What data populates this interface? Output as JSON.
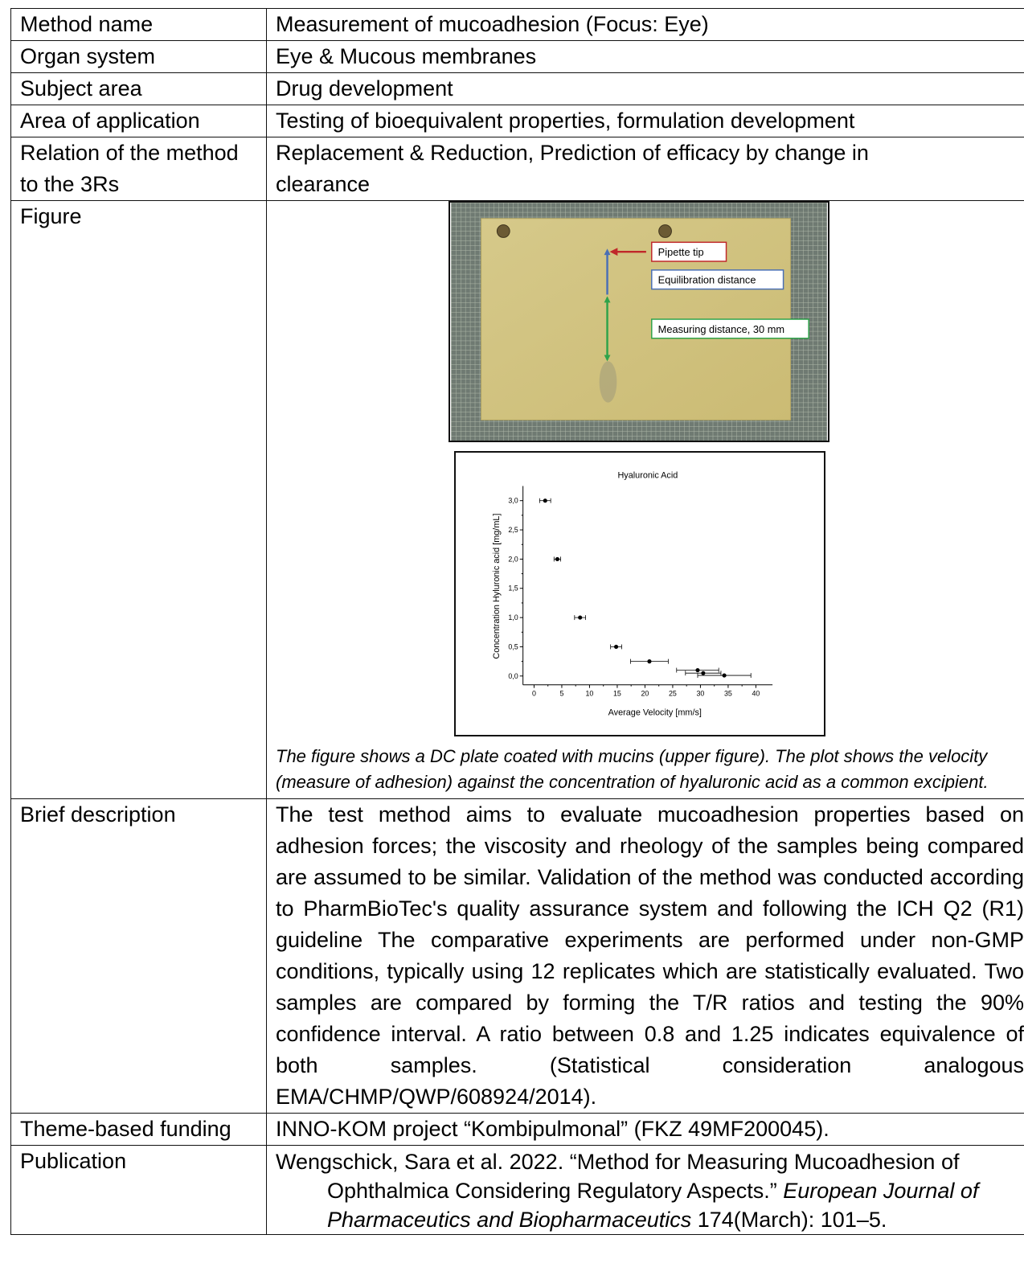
{
  "rows": {
    "method_name": {
      "label": "Method name",
      "value": "Measurement of mucoadhesion (Focus: Eye)"
    },
    "organ_system": {
      "label": "Organ system",
      "value": "Eye & Mucous membranes"
    },
    "subject_area": {
      "label": "Subject area",
      "value": "Drug development"
    },
    "area_of_application": {
      "label": "Area of application",
      "value": "Testing of bioequivalent properties, formulation development"
    },
    "relation_3rs": {
      "label": "Relation of the method to the 3Rs",
      "value": "Replacement & Reduction, Prediction of efficacy by change in clearance"
    },
    "figure": {
      "label": "Figure",
      "photo_labels": {
        "pipette_tip": "Pipette tip",
        "equilibration": "Equilibration distance",
        "measuring": "Measuring distance, 30 mm"
      },
      "caption": "The figure shows a DC plate coated with mucins (upper figure). The plot shows the velocity (measure of adhesion) against the concentration of hyaluronic acid as a common excipient."
    },
    "brief_description": {
      "label": "Brief description",
      "value": "The test method aims to evaluate mucoadhesion properties based on adhesion forces; the viscosity and rheology of the samples being compared are assumed to be similar. Validation of the method was conducted according to PharmBioTec's quality assurance system and following the ICH Q2 (R1) guideline The comparative experiments are performed under non-GMP conditions, typically using 12 replicates which are statistically evaluated. Two samples are compared by forming the T/R ratios and testing the 90% confidence interval. A ratio between 0.8 and 1.25 indicates equivalence of both samples. (Statistical consideration analogous EMA/CHMP/QWP/608924/2014)."
    },
    "funding": {
      "label": "Theme-based funding",
      "value": "INNO-KOM project “Kombipulmonal” (FKZ 49MF200045)."
    },
    "publication": {
      "label": "Publication",
      "part1": "Wengschick, Sara et al. 2022. “Method for Measuring Mucoadhesion of Ophthalmica Considering Regulatory Aspects.” ",
      "journal": "European Journal of Pharmaceutics and Biopharmaceutics",
      "part2": " 174(March): 101–5."
    }
  },
  "chart_data": {
    "type": "scatter",
    "title": "Hyaluronic Acid",
    "xlabel": "Average Velocity [mm/s]",
    "ylabel": "Concentration Hyluronic acid [mg/mL]",
    "xlim": [
      -2,
      43
    ],
    "ylim": [
      -0.15,
      3.25
    ],
    "xticks": [
      "0",
      "5",
      "10",
      "15",
      "20",
      "25",
      "30",
      "35",
      "40"
    ],
    "xtick_values": [
      0,
      5,
      10,
      15,
      20,
      25,
      30,
      35,
      40
    ],
    "yticks": [
      "0,0",
      "0,5",
      "1,0",
      "1,5",
      "2,0",
      "2,5",
      "3,0"
    ],
    "ytick_values": [
      0,
      0.5,
      1.0,
      1.5,
      2.0,
      2.5,
      3.0
    ],
    "points": [
      {
        "x": 2.0,
        "y": 3.0,
        "xerr": 1.0
      },
      {
        "x": 4.2,
        "y": 2.0,
        "xerr": 0.6
      },
      {
        "x": 8.3,
        "y": 1.0,
        "xerr": 1.0
      },
      {
        "x": 14.8,
        "y": 0.5,
        "xerr": 1.0
      },
      {
        "x": 20.8,
        "y": 0.25,
        "xerr": 3.4
      },
      {
        "x": 29.5,
        "y": 0.1,
        "xerr": 3.8
      },
      {
        "x": 30.5,
        "y": 0.05,
        "xerr": 3.2
      },
      {
        "x": 34.3,
        "y": 0.01,
        "xerr": 4.8
      }
    ],
    "grid": false
  }
}
